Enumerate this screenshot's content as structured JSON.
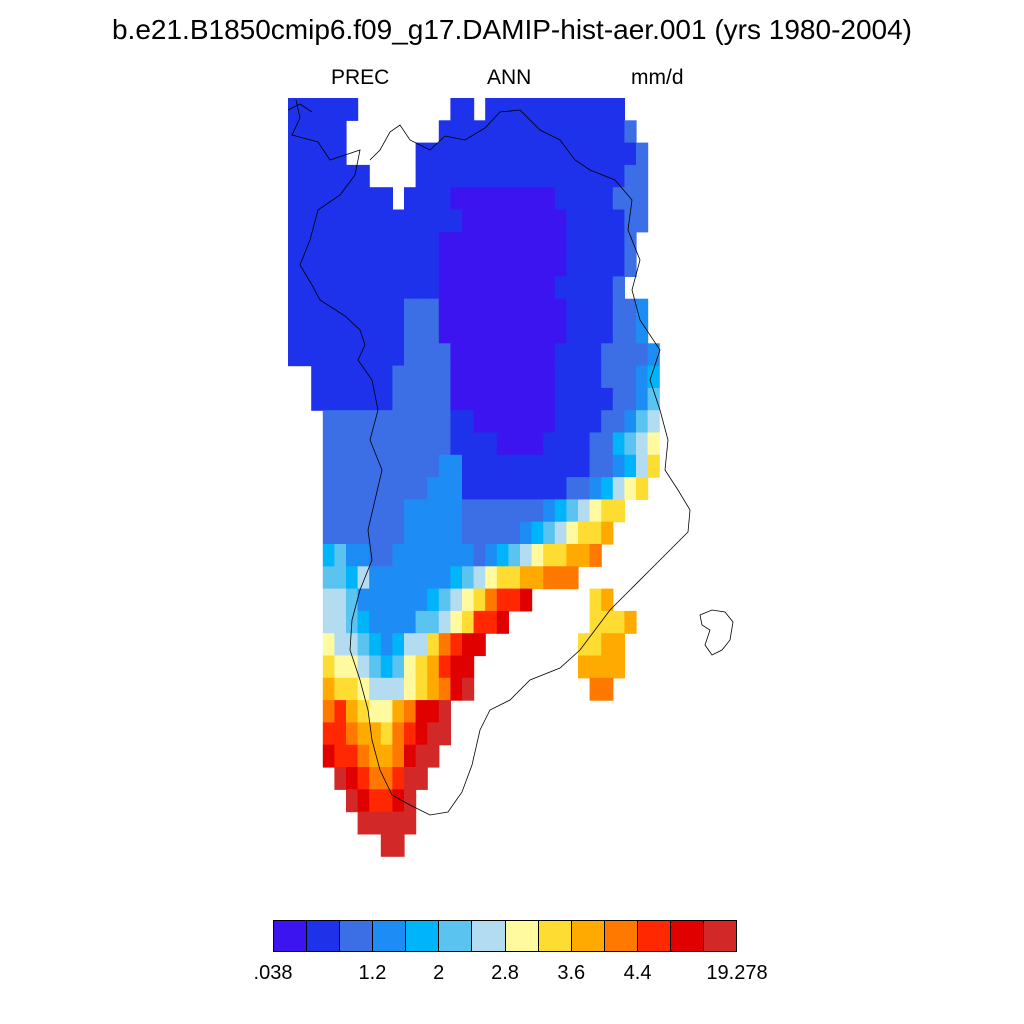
{
  "title": "b.e21.B1850cmip6.f09_g17.DAMIP-hist-aer.001 (yrs 1980-2004)",
  "subtitle": {
    "left": "PREC",
    "center": "ANN",
    "right": "mm/d"
  },
  "colorbar": {
    "colors": [
      "#3C14F0",
      "#1E32EB",
      "#3C6EE6",
      "#1E8CF5",
      "#00B4FA",
      "#5AC3F0",
      "#B4DCF0",
      "#FFFAA0",
      "#FFDC32",
      "#FFAA00",
      "#FF7800",
      "#FF2800",
      "#E10000",
      "#D22828"
    ],
    "labels": [
      ".038",
      "1.2",
      "2",
      "2.8",
      "3.6",
      "4.4",
      "19.278"
    ]
  },
  "chart_data": {
    "type": "heatmap",
    "variable": "PREC",
    "season": "ANN",
    "units": "mm/d",
    "region_note": "Greenland precipitation field",
    "levels": [
      ".038",
      "1.2",
      "2",
      "2.8",
      "3.6",
      "4.4",
      "19.278"
    ],
    "grid_rows": [
      "111111........11.111111111111..........",
      "11111........11111111111111112.........",
      "11111......11111111111111111112........",
      "1111111....11111111111111111122........",
      "111111111.111100000000011111222........",
      "1111111111111110000000001111122........",
      "111111111111100000000000111112.........",
      "111111111111100000000000111112.........",
      "11111111111110000000000111112..........",
      "1111111111222000000000001111223.........",
      "1111111111222000000000001111223.........",
      "11111111112222000000000111122223........",
      "..111111122222000000000111122234........",
      "..111111122222000000000111112235........",
      "...22222222222110000000111122356........",
      "...22222222222111100001111224567........",
      "...22222222223311111111111223468........",
      "...2222222223331111111112234678.........",
      "...22222223333322222223456788...........",
      "...2222222333332222234567889............",
      "...45332233333332345678899A.............",
      "...5546333333345678899AAA...............",
      "...66533333345678ABBC.....89............",
      "...6654333355678BBC.......8889..........",
      "...7665434668ABCC........8899...........",
      "...8776545789BCC.........9999...........",
      "...9887666789ACD..........AA............",
      "...AB98779ACCD...........................",
      "...BBA998ABCDD...........................",
      "...CBBA99ACDD............................",
      "....DCBAABDD.............................",
      ".....DCBBCD..............................",
      "......DDDDD..............................",
      "........DD..............................."
    ]
  }
}
